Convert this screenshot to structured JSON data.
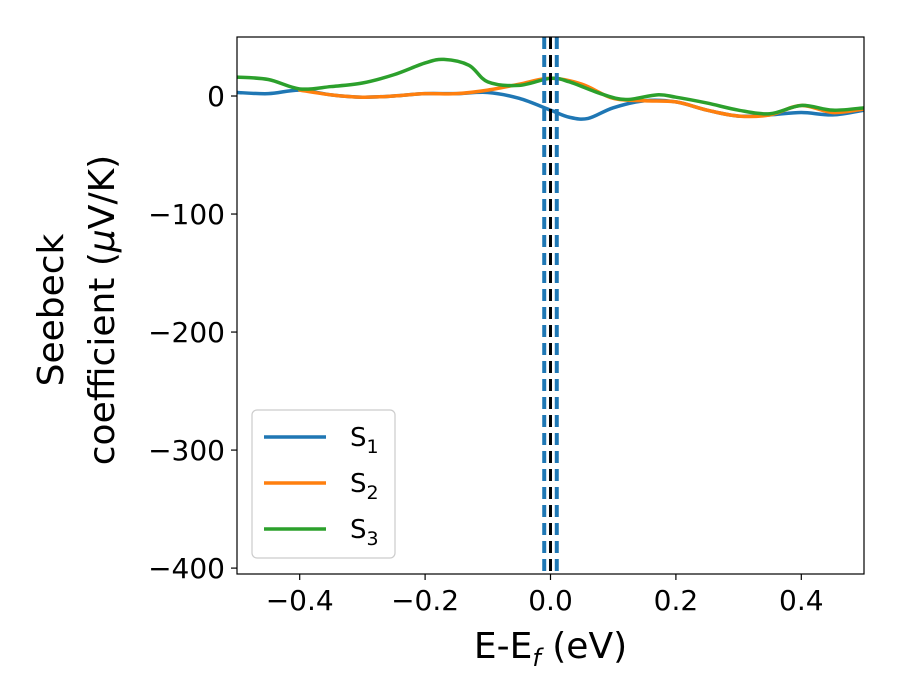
{
  "chart_data": {
    "type": "line",
    "xlabel_main": "E-E",
    "xlabel_sub": "f",
    "xlabel_unit": " (eV)",
    "ylabel_line1": "Seebeck",
    "ylabel_line2_text": "coefficient  (",
    "ylabel_line2_mu": "μ",
    "ylabel_line2_unit": "V/K)",
    "xlim": [
      -0.5,
      0.5
    ],
    "ylim": [
      -405,
      50
    ],
    "x_ticks": [
      -0.4,
      -0.2,
      0.0,
      0.2,
      0.4
    ],
    "x_tick_labels": [
      "−0.4",
      "−0.2",
      "0.0",
      "0.2",
      "0.4"
    ],
    "y_ticks": [
      0,
      -100,
      -200,
      -300,
      -400
    ],
    "y_tick_labels": [
      "0",
      "−100",
      "−200",
      "−300",
      "−400"
    ],
    "grid": false,
    "legend_position": "lower-left",
    "vertical_lines": [
      {
        "x": -0.01,
        "style": "dashed",
        "color": "#1f77b4"
      },
      {
        "x": 0.0,
        "style": "dashed",
        "color": "#000000"
      },
      {
        "x": 0.01,
        "style": "dashed",
        "color": "#1f77b4"
      }
    ],
    "series": [
      {
        "name": "S",
        "sub": "1",
        "color": "#1f77b4",
        "points": [
          [
            -0.5,
            3
          ],
          [
            -0.45,
            2
          ],
          [
            -0.4,
            5
          ],
          [
            -0.35,
            1
          ],
          [
            -0.3,
            -1
          ],
          [
            -0.25,
            0
          ],
          [
            -0.2,
            2
          ],
          [
            -0.15,
            2
          ],
          [
            -0.1,
            3
          ],
          [
            -0.05,
            -2
          ],
          [
            0.0,
            -12
          ],
          [
            0.03,
            -18
          ],
          [
            0.06,
            -19
          ],
          [
            0.1,
            -10
          ],
          [
            0.15,
            -4
          ],
          [
            0.2,
            -5
          ],
          [
            0.25,
            -12
          ],
          [
            0.3,
            -17
          ],
          [
            0.35,
            -16
          ],
          [
            0.4,
            -14
          ],
          [
            0.45,
            -16
          ],
          [
            0.5,
            -12
          ]
        ]
      },
      {
        "name": "S",
        "sub": "2",
        "color": "#ff7f0e",
        "points": [
          [
            -0.4,
            5
          ],
          [
            -0.35,
            1
          ],
          [
            -0.3,
            -1
          ],
          [
            -0.25,
            0
          ],
          [
            -0.2,
            2
          ],
          [
            -0.15,
            2
          ],
          [
            -0.1,
            5
          ],
          [
            -0.05,
            10
          ],
          [
            0.0,
            15
          ],
          [
            0.05,
            10
          ],
          [
            0.1,
            -2
          ],
          [
            0.15,
            -4
          ],
          [
            0.2,
            -5
          ],
          [
            0.25,
            -12
          ],
          [
            0.3,
            -17
          ],
          [
            0.35,
            -16
          ],
          [
            0.4,
            -8
          ],
          [
            0.45,
            -14
          ],
          [
            0.5,
            -11
          ]
        ]
      },
      {
        "name": "S",
        "sub": "3",
        "color": "#2ca02c",
        "points": [
          [
            -0.5,
            16
          ],
          [
            -0.45,
            14
          ],
          [
            -0.4,
            6
          ],
          [
            -0.35,
            8
          ],
          [
            -0.3,
            11
          ],
          [
            -0.25,
            18
          ],
          [
            -0.2,
            28
          ],
          [
            -0.17,
            31
          ],
          [
            -0.13,
            26
          ],
          [
            -0.1,
            12
          ],
          [
            -0.05,
            9
          ],
          [
            0.0,
            15
          ],
          [
            0.03,
            12
          ],
          [
            0.08,
            2
          ],
          [
            0.12,
            -3
          ],
          [
            0.17,
            1
          ],
          [
            0.2,
            -1
          ],
          [
            0.25,
            -6
          ],
          [
            0.3,
            -12
          ],
          [
            0.35,
            -15
          ],
          [
            0.4,
            -8
          ],
          [
            0.45,
            -12
          ],
          [
            0.5,
            -10
          ]
        ]
      }
    ]
  }
}
